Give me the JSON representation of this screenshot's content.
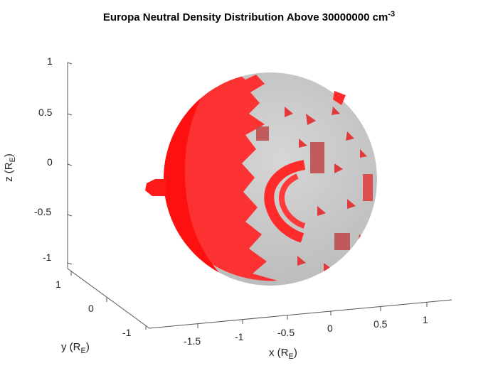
{
  "chart_data": {
    "type": "surface3d",
    "title_text": "Europa Neutral Density Distribution Above 30000000 cm",
    "title_superscript": "-3",
    "threshold": 30000000,
    "xlabel": {
      "text": "x (R",
      "sub": "E",
      "close": ")"
    },
    "ylabel": {
      "text": "y (R",
      "sub": "E",
      "close": ")"
    },
    "zlabel": {
      "text": "z (R",
      "sub": "E",
      "close": ")"
    },
    "x_ticks": [
      "-1.5",
      "-1",
      "-0.5",
      "0",
      "0.5",
      "1"
    ],
    "y_ticks": [
      "1",
      "0",
      "-1"
    ],
    "z_ticks": [
      "1",
      "0.5",
      "0",
      "-0.5",
      "-1"
    ],
    "xlim": [
      -1.75,
      1.25
    ],
    "ylim": [
      -1.25,
      1.25
    ],
    "zlim": [
      -1,
      1
    ],
    "surfaces": [
      {
        "name": "Europa",
        "color": "#c8c8c8"
      },
      {
        "name": "Neutral density isosurface",
        "color": "#ff2020"
      }
    ]
  }
}
